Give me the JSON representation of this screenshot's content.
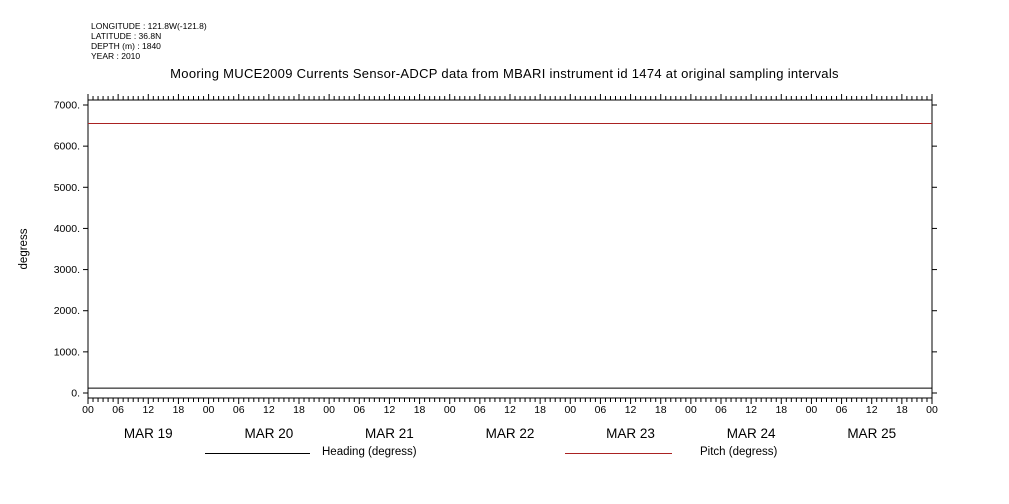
{
  "metadata": {
    "longitude": "LONGITUDE : 121.8W(-121.8)",
    "latitude": "LATITUDE : 36.8N",
    "depth": "DEPTH (m) : 1840",
    "year": "YEAR : 2010"
  },
  "colors": {
    "background": "#ffffff",
    "foreground": "#000000",
    "pitch_red": "#aa2222"
  },
  "chart_data": {
    "type": "line",
    "title": "Mooring MUCE2009 Currents Sensor-ADCP data from MBARI instrument id 1474 at original sampling intervals",
    "xlabel": "",
    "ylabel": "degress",
    "ylim": [
      0,
      7000
    ],
    "ytick_values": [
      0,
      1000,
      2000,
      3000,
      4000,
      5000,
      6000,
      7000
    ],
    "ytick_labels": [
      "0.",
      "1000.",
      "2000.",
      "3000.",
      "4000.",
      "5000.",
      "6000.",
      "7000."
    ],
    "days": [
      "MAR 19",
      "MAR 20",
      "MAR 21",
      "MAR 22",
      "MAR 23",
      "MAR 24",
      "MAR 25"
    ],
    "hour_labels": [
      "00",
      "06",
      "12",
      "18"
    ],
    "x_minor_tick_hours": 1,
    "x_major_tick_hours": 6,
    "grid": false,
    "legend_position": "bottom",
    "series": [
      {
        "name": "Heading (degress)",
        "color": "#000000",
        "shape": "constant",
        "value": 120
      },
      {
        "name": "Pitch (degress)",
        "color": "#aa2222",
        "shape": "constant",
        "value": 6550
      }
    ]
  }
}
